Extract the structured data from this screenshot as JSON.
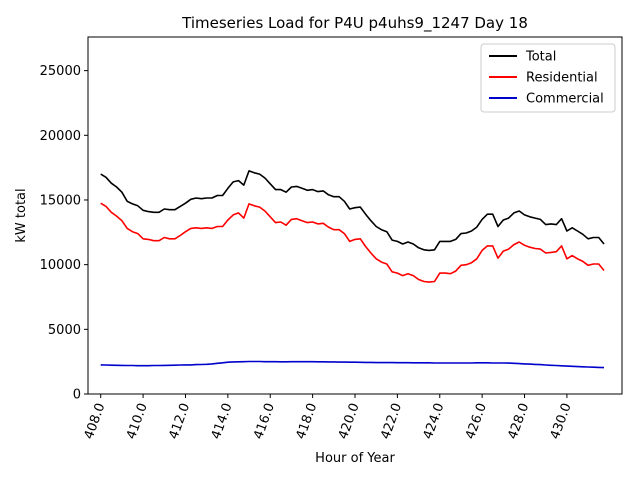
{
  "chart_data": {
    "type": "line",
    "title": "Timeseries Load for P4U p4uhs9_1247  Day 18",
    "xlabel": "Hour of Year",
    "ylabel": "kW total",
    "xlim": [
      407.4,
      432.6
    ],
    "ylim": [
      0,
      27600
    ],
    "x_ticks": [
      408,
      410,
      412,
      414,
      416,
      418,
      420,
      422,
      424,
      426,
      428,
      430
    ],
    "x_tick_labels": [
      "408.0",
      "410.0",
      "412.0",
      "414.0",
      "416.0",
      "418.0",
      "420.0",
      "422.0",
      "424.0",
      "426.0",
      "428.0",
      "430.0"
    ],
    "y_ticks": [
      0,
      5000,
      10000,
      15000,
      20000,
      25000
    ],
    "y_tick_labels": [
      "0",
      "5000",
      "10000",
      "15000",
      "20000",
      "25000"
    ],
    "legend_position": "top-right",
    "grid": false,
    "colors": {
      "Total": "#000000",
      "Residential": "#ff0000",
      "Commercial": "#0000cc"
    },
    "x": [
      408.0,
      408.25,
      408.5,
      408.75,
      409.0,
      409.25,
      409.5,
      409.75,
      410.0,
      410.25,
      410.5,
      410.75,
      411.0,
      411.25,
      411.5,
      411.75,
      412.0,
      412.25,
      412.5,
      412.75,
      413.0,
      413.25,
      413.5,
      413.75,
      414.0,
      414.25,
      414.5,
      414.75,
      415.0,
      415.25,
      415.5,
      415.75,
      416.0,
      416.25,
      416.5,
      416.75,
      417.0,
      417.25,
      417.5,
      417.75,
      418.0,
      418.25,
      418.5,
      418.75,
      419.0,
      419.25,
      419.5,
      419.75,
      420.0,
      420.25,
      420.5,
      420.75,
      421.0,
      421.25,
      421.5,
      421.75,
      422.0,
      422.25,
      422.5,
      422.75,
      423.0,
      423.25,
      423.5,
      423.75,
      424.0,
      424.25,
      424.5,
      424.75,
      425.0,
      425.25,
      425.5,
      425.75,
      426.0,
      426.25,
      426.5,
      426.75,
      427.0,
      427.25,
      427.5,
      427.75,
      428.0,
      428.25,
      428.5,
      428.75,
      429.0,
      429.25,
      429.5,
      429.75,
      430.0,
      430.25,
      430.5,
      430.75,
      431.0,
      431.25,
      431.5,
      431.75
    ],
    "series": [
      {
        "name": "Total",
        "values": [
          17000,
          16750,
          16300,
          16000,
          15600,
          14900,
          14700,
          14550,
          14200,
          14100,
          14050,
          14050,
          14300,
          14250,
          14250,
          14500,
          14750,
          15050,
          15150,
          15100,
          15150,
          15150,
          15350,
          15350,
          15900,
          16400,
          16500,
          16150,
          17250,
          17100,
          17000,
          16700,
          16250,
          15800,
          15800,
          15600,
          16000,
          16050,
          15900,
          15750,
          15800,
          15650,
          15700,
          15400,
          15250,
          15250,
          14900,
          14300,
          14400,
          14450,
          13900,
          13400,
          12950,
          12700,
          12550,
          11900,
          11800,
          11600,
          11750,
          11600,
          11300,
          11150,
          11100,
          11150,
          11800,
          11800,
          11800,
          11950,
          12400,
          12450,
          12600,
          12900,
          13500,
          13900,
          13900,
          12950,
          13450,
          13600,
          14000,
          14150,
          13850,
          13700,
          13600,
          13500,
          13100,
          13150,
          13100,
          13550,
          12600,
          12850,
          12600,
          12350,
          12000,
          12100,
          12100,
          11600
        ]
      },
      {
        "name": "Residential",
        "values": [
          14750,
          14500,
          14050,
          13750,
          13400,
          12800,
          12550,
          12400,
          12000,
          11950,
          11850,
          11850,
          12100,
          12000,
          12000,
          12250,
          12550,
          12800,
          12850,
          12800,
          12850,
          12800,
          12950,
          12950,
          13450,
          13850,
          14000,
          13600,
          14700,
          14550,
          14450,
          14150,
          13700,
          13250,
          13300,
          13050,
          13500,
          13550,
          13400,
          13250,
          13300,
          13150,
          13200,
          12900,
          12700,
          12700,
          12400,
          11800,
          11950,
          12000,
          11400,
          10900,
          10450,
          10200,
          10050,
          9450,
          9350,
          9150,
          9300,
          9150,
          8850,
          8700,
          8650,
          8700,
          9350,
          9350,
          9300,
          9500,
          9950,
          10000,
          10150,
          10450,
          11100,
          11450,
          11450,
          10500,
          11050,
          11200,
          11550,
          11750,
          11500,
          11350,
          11250,
          11200,
          10900,
          10950,
          11000,
          11450,
          10450,
          10700,
          10450,
          10250,
          9950,
          10050,
          10050,
          9550
        ]
      },
      {
        "name": "Commercial",
        "values": [
          2250,
          2240,
          2230,
          2220,
          2210,
          2200,
          2200,
          2190,
          2190,
          2190,
          2200,
          2200,
          2210,
          2220,
          2230,
          2240,
          2250,
          2250,
          2270,
          2280,
          2300,
          2330,
          2370,
          2410,
          2460,
          2480,
          2490,
          2500,
          2510,
          2510,
          2510,
          2500,
          2500,
          2500,
          2490,
          2490,
          2500,
          2500,
          2500,
          2500,
          2500,
          2490,
          2490,
          2480,
          2480,
          2470,
          2470,
          2460,
          2460,
          2450,
          2440,
          2440,
          2430,
          2430,
          2430,
          2430,
          2420,
          2420,
          2420,
          2410,
          2410,
          2410,
          2410,
          2400,
          2400,
          2400,
          2400,
          2400,
          2400,
          2400,
          2400,
          2410,
          2410,
          2410,
          2400,
          2400,
          2400,
          2390,
          2370,
          2350,
          2330,
          2310,
          2290,
          2270,
          2240,
          2220,
          2200,
          2180,
          2160,
          2140,
          2120,
          2100,
          2090,
          2070,
          2060,
          2040
        ]
      }
    ]
  }
}
